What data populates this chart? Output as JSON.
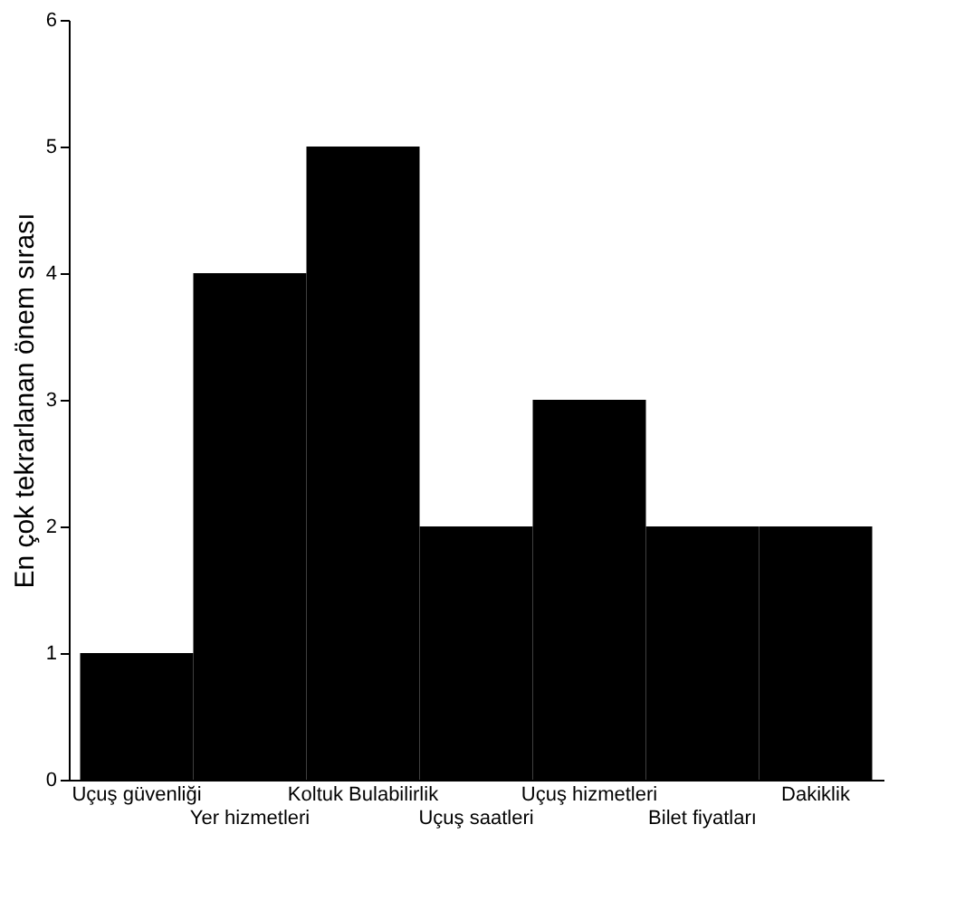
{
  "chart_data": {
    "type": "bar",
    "ylabel": "En çok tekrarlanan önem sırası",
    "categories": [
      "Uçuş güvenliği",
      "Yer hizmetleri",
      "Koltuk Bulabilirlik",
      "Uçuş saatleri",
      "Uçuş hizmetleri",
      "Bilet fiyatları",
      "Dakiklik"
    ],
    "values": [
      1,
      4,
      5,
      2,
      3,
      2,
      2
    ],
    "color": "#000000",
    "ylim": [
      0,
      6
    ],
    "yticks": [
      0,
      1,
      2,
      3,
      4,
      5,
      6
    ],
    "grid": false
  }
}
